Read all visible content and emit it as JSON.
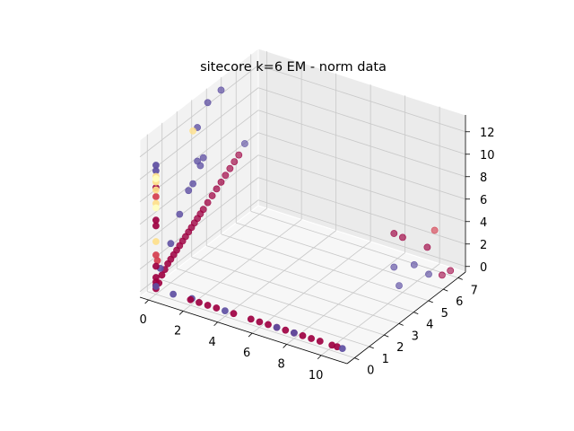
{
  "figure": {
    "title": "sitecore k=6 EM - norm data"
  },
  "chart_data": {
    "type": "scatter",
    "title": "sitecore k=6 EM - norm data",
    "xlabel": "",
    "ylabel": "",
    "zlabel": "",
    "xlim": [
      -0.5,
      11.5
    ],
    "ylim": [
      -0.5,
      7.5
    ],
    "zlim": [
      -0.5,
      13.5
    ],
    "xticks": [
      "0",
      "2",
      "4",
      "6",
      "8",
      "10"
    ],
    "yticks": [
      "0",
      "1",
      "2",
      "3",
      "4",
      "5",
      "6",
      "7"
    ],
    "zticks": [
      "0",
      "2",
      "4",
      "6",
      "8",
      "10",
      "12"
    ],
    "grid": true,
    "colors": {
      "cluster_purple": "#5e4fa2",
      "cluster_crimson": "#9e0142",
      "cluster_red": "#d53e4f",
      "cluster_yellow": "#fee08b",
      "cluster_cream": "#ffffbf",
      "pane_back": "#ebebeb",
      "pane_side": "#f2f2f2",
      "pane_floor": "#f7f7f7"
    },
    "series": [
      {
        "color_key": "cluster_crimson",
        "points": [
          [
            0,
            0,
            0
          ],
          [
            0,
            0,
            0.3
          ],
          [
            0,
            0,
            0.6
          ],
          [
            0,
            0,
            1.0
          ],
          [
            0,
            0,
            2.0
          ],
          [
            0,
            0,
            5.6
          ],
          [
            0,
            0,
            6.1
          ],
          [
            0,
            0,
            9.0
          ],
          [
            0,
            0.2,
            0.3
          ],
          [
            0,
            0.4,
            0.8
          ],
          [
            0,
            0.6,
            1.1
          ],
          [
            0,
            0.8,
            1.4
          ],
          [
            0,
            1.0,
            1.6
          ],
          [
            0,
            1.2,
            1.8
          ],
          [
            0,
            1.4,
            2.0
          ],
          [
            0,
            1.6,
            2.2
          ],
          [
            0,
            1.8,
            2.4
          ],
          [
            0,
            2.0,
            2.6
          ],
          [
            0,
            2.2,
            2.8
          ],
          [
            0,
            2.4,
            3.0
          ],
          [
            0,
            2.6,
            3.2
          ],
          [
            0,
            2.8,
            3.4
          ],
          [
            0,
            3.0,
            3.6
          ],
          [
            0,
            3.2,
            3.8
          ],
          [
            0,
            3.5,
            4.1
          ],
          [
            0,
            3.8,
            4.4
          ],
          [
            0,
            4.1,
            4.7
          ],
          [
            0,
            4.4,
            5.0
          ],
          [
            0,
            4.7,
            5.3
          ],
          [
            0,
            5.0,
            5.6
          ],
          [
            0,
            5.3,
            5.9
          ],
          [
            0,
            5.6,
            6.2
          ],
          [
            2.0,
            0,
            0
          ],
          [
            2.5,
            0,
            0
          ],
          [
            3.0,
            0,
            0
          ],
          [
            3.5,
            0,
            0
          ],
          [
            4.5,
            0,
            0
          ],
          [
            5.5,
            0,
            0
          ],
          [
            6.0,
            0,
            0
          ],
          [
            6.5,
            0,
            0
          ],
          [
            7.0,
            0,
            0
          ],
          [
            7.5,
            0,
            0
          ],
          [
            8.0,
            0,
            0
          ],
          [
            8.5,
            0,
            0
          ],
          [
            9.0,
            0,
            0
          ],
          [
            9.5,
            0,
            0
          ],
          [
            10.2,
            0,
            0
          ],
          [
            10.5,
            0,
            0
          ],
          [
            9.5,
            5.0,
            4.5
          ],
          [
            10.0,
            5.0,
            4.4
          ],
          [
            11.0,
            5.5,
            3.5
          ],
          [
            11.0,
            6.5,
            0
          ],
          [
            11.4,
            6.6,
            0.5
          ]
        ]
      },
      {
        "color_key": "cluster_purple",
        "points": [
          [
            0,
            0,
            0.2
          ],
          [
            0,
            0,
            11.0
          ],
          [
            0,
            0,
            10.5
          ],
          [
            0,
            0.3,
            1.5
          ],
          [
            0,
            1.0,
            3.0
          ],
          [
            0,
            1.6,
            5.0
          ],
          [
            0,
            2.2,
            6.5
          ],
          [
            0,
            2.5,
            6.8
          ],
          [
            0,
            2.8,
            8.5
          ],
          [
            0,
            3.0,
            7.9
          ],
          [
            0,
            3.2,
            8.4
          ],
          [
            0,
            2.8,
            11.5
          ],
          [
            0,
            3.5,
            13.0
          ],
          [
            0,
            4.4,
            13.2
          ],
          [
            0,
            6.0,
            6.8
          ],
          [
            1.0,
            0,
            0
          ],
          [
            2.0,
            0.1,
            0
          ],
          [
            4.0,
            0,
            0
          ],
          [
            7.0,
            0,
            0
          ],
          [
            8.0,
            0,
            0
          ],
          [
            10.8,
            0,
            0
          ],
          [
            9.5,
            5.0,
            1.5
          ],
          [
            9.8,
            5.0,
            0
          ],
          [
            10.5,
            5.2,
            2.0
          ],
          [
            11.0,
            5.6,
            1.0
          ]
        ]
      },
      {
        "color_key": "cluster_red",
        "points": [
          [
            0,
            0,
            8.2
          ],
          [
            0,
            0,
            3.0
          ],
          [
            0,
            0.1,
            2.4
          ],
          [
            11.0,
            6.0,
            4.5
          ]
        ]
      },
      {
        "color_key": "cluster_yellow",
        "points": [
          [
            0,
            0,
            10.0
          ],
          [
            0,
            0,
            9.5
          ],
          [
            0,
            0,
            4.2
          ],
          [
            0,
            0,
            7.6
          ],
          [
            0,
            0,
            8.8
          ],
          [
            0,
            2.5,
            11.5
          ]
        ]
      },
      {
        "color_key": "cluster_cream",
        "points": [
          [
            0,
            0,
            9.8
          ],
          [
            0,
            0,
            7.2
          ]
        ]
      }
    ]
  }
}
